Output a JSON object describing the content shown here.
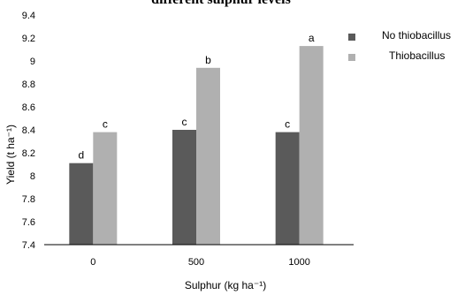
{
  "chart_data": {
    "type": "bar",
    "title": "different sulphur levels",
    "xlabel": "Sulphur (kg ha⁻¹)",
    "ylabel": "Yield (t ha⁻¹)",
    "categories": [
      "0",
      "500",
      "1000"
    ],
    "ylim": [
      7.4,
      9.4
    ],
    "yticks": [
      "7.4",
      "7.6",
      "7.8",
      "8",
      "8.2",
      "8.4",
      "8.6",
      "8.8",
      "9",
      "9.2",
      "9.4"
    ],
    "series": [
      {
        "name": "No thiobacillus",
        "color": "#5a5a5a",
        "values": [
          8.11,
          8.4,
          8.38
        ],
        "labels": [
          "d",
          "c",
          "c"
        ]
      },
      {
        "name": "Thiobacillus",
        "color": "#b0b0b0",
        "values": [
          8.38,
          8.94,
          9.13
        ],
        "labels": [
          "c",
          "b",
          "a"
        ]
      }
    ],
    "grid": false,
    "legend_position": "right"
  }
}
